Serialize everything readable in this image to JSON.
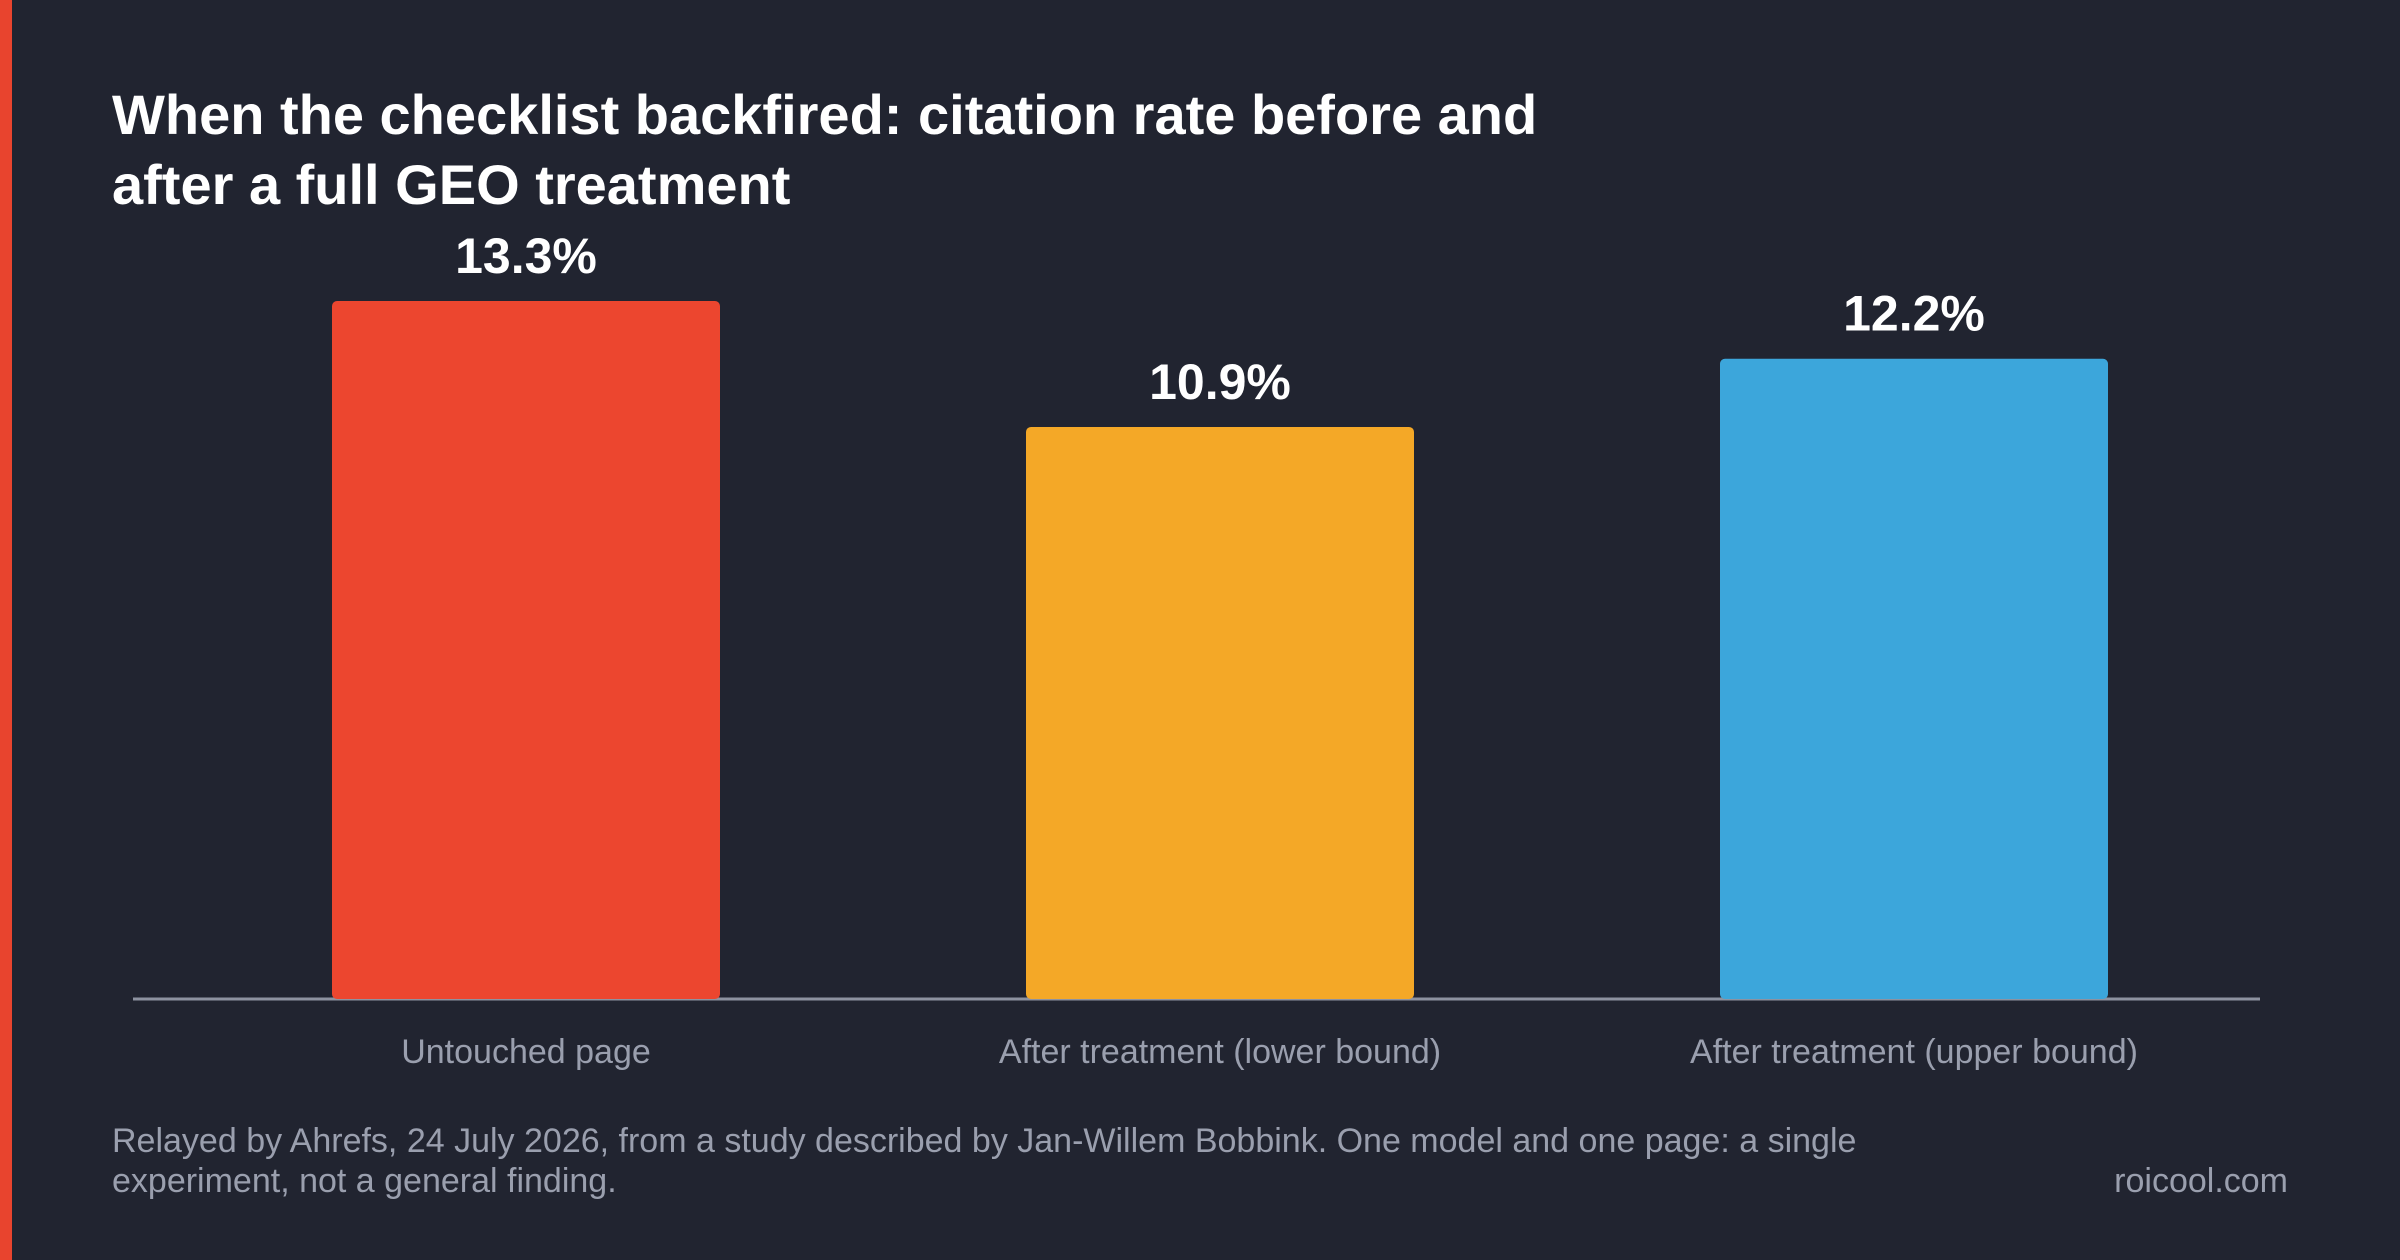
{
  "chart_data": {
    "type": "bar",
    "title": "When the checklist backfired: citation rate before and after a full GEO treatment",
    "categories": [
      "Untouched page",
      "After treatment (lower bound)",
      "After treatment (upper bound)"
    ],
    "values": [
      13.3,
      10.9,
      12.2
    ],
    "value_labels": [
      "13.3%",
      "10.9%",
      "12.2%"
    ],
    "bar_colors": [
      "#ec462f",
      "#f4a827",
      "#3ca6db"
    ],
    "xlabel": "",
    "ylabel": "",
    "ylim": [
      0,
      13.3
    ],
    "grid": false,
    "legend": "none"
  },
  "footer": {
    "note": "Relayed by Ahrefs, 24 July 2026, from a study described by Jan-Willem Bobbink. One model and one page: a single experiment, not a general finding.",
    "brand": "roicool.com"
  },
  "colors": {
    "background": "#212430",
    "accent": "#e8442e",
    "title": "#ffffff",
    "muted_text": "#9a9fae",
    "axis": "#8d92a0"
  }
}
